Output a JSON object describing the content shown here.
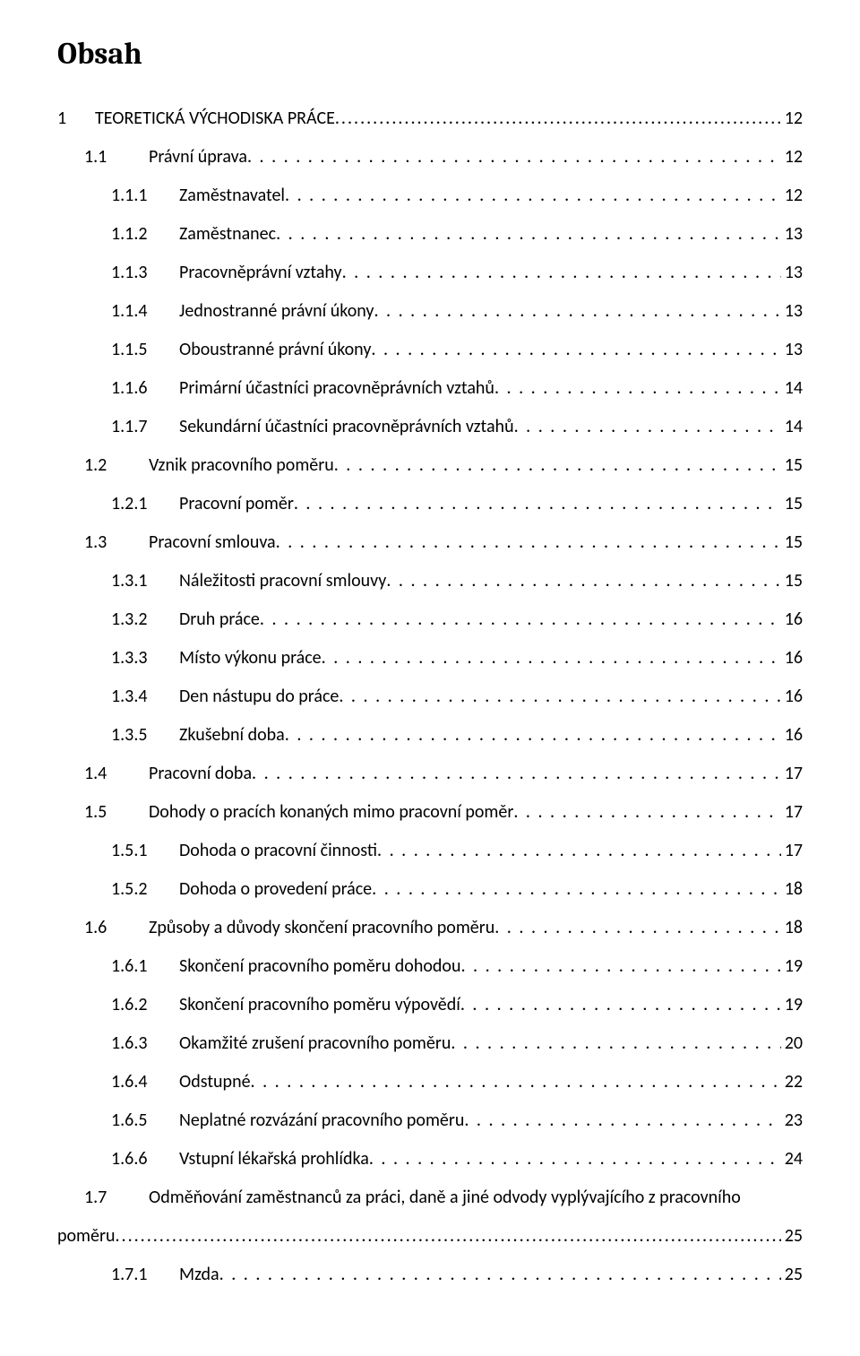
{
  "heading": "Obsah",
  "toc": [
    {
      "level": 1,
      "num": "1",
      "title": "TEORETICKÁ VÝCHODISKA PRÁCE",
      "page": "12",
      "dots": "dense"
    },
    {
      "level": 2,
      "num": "1.1",
      "title": "Právní úprava",
      "page": "12",
      "dots": "space"
    },
    {
      "level": 3,
      "num": "1.1.1",
      "title": "Zaměstnavatel",
      "page": "12",
      "dots": "space"
    },
    {
      "level": 3,
      "num": "1.1.2",
      "title": "Zaměstnanec",
      "page": "13",
      "dots": "space"
    },
    {
      "level": 3,
      "num": "1.1.3",
      "title": "Pracovněprávní vztahy",
      "page": "13",
      "dots": "space"
    },
    {
      "level": 3,
      "num": "1.1.4",
      "title": "Jednostranné právní úkony",
      "page": "13",
      "dots": "space"
    },
    {
      "level": 3,
      "num": "1.1.5",
      "title": "Oboustranné právní úkony",
      "page": "13",
      "dots": "space"
    },
    {
      "level": 3,
      "num": "1.1.6",
      "title": "Primární účastníci pracovněprávních vztahů",
      "page": "14",
      "dots": "space"
    },
    {
      "level": 3,
      "num": "1.1.7",
      "title": "Sekundární účastníci pracovněprávních vztahů",
      "page": "14",
      "dots": "space"
    },
    {
      "level": 2,
      "num": "1.2",
      "title": "Vznik pracovního poměru",
      "page": "15",
      "dots": "space"
    },
    {
      "level": 3,
      "num": "1.2.1",
      "title": "Pracovní poměr",
      "page": "15",
      "dots": "space"
    },
    {
      "level": 2,
      "num": "1.3",
      "title": "Pracovní smlouva",
      "page": "15",
      "dots": "space"
    },
    {
      "level": 3,
      "num": "1.3.1",
      "title": "Náležitosti pracovní smlouvy",
      "page": "15",
      "dots": "space"
    },
    {
      "level": 3,
      "num": "1.3.2",
      "title": "Druh práce",
      "page": "16",
      "dots": "space"
    },
    {
      "level": 3,
      "num": "1.3.3",
      "title": "Místo výkonu práce",
      "page": "16",
      "dots": "space"
    },
    {
      "level": 3,
      "num": "1.3.4",
      "title": "Den nástupu do práce",
      "page": "16",
      "dots": "space"
    },
    {
      "level": 3,
      "num": "1.3.5",
      "title": "Zkušební doba",
      "page": "16",
      "dots": "space"
    },
    {
      "level": 2,
      "num": "1.4",
      "title": "Pracovní doba",
      "page": "17",
      "dots": "space"
    },
    {
      "level": 2,
      "num": "1.5",
      "title": "Dohody o pracích konaných mimo pracovní poměr",
      "page": "17",
      "dots": "space"
    },
    {
      "level": 3,
      "num": "1.5.1",
      "title": "Dohoda o pracovní činnosti",
      "page": "17",
      "dots": "space"
    },
    {
      "level": 3,
      "num": "1.5.2",
      "title": "Dohoda o provedení práce",
      "page": "18",
      "dots": "space"
    },
    {
      "level": 2,
      "num": "1.6",
      "title": "Způsoby a důvody skončení pracovního poměru",
      "page": "18",
      "dots": "space"
    },
    {
      "level": 3,
      "num": "1.6.1",
      "title": "Skončení pracovního poměru dohodou",
      "page": "19",
      "dots": "space"
    },
    {
      "level": 3,
      "num": "1.6.2",
      "title": "Skončení pracovního poměru výpovědí",
      "page": "19",
      "dots": "space"
    },
    {
      "level": 3,
      "num": "1.6.3",
      "title": "Okamžité zrušení pracovního poměru",
      "page": "20",
      "dots": "space"
    },
    {
      "level": 3,
      "num": "1.6.4",
      "title": "Odstupné",
      "page": "22",
      "dots": "space"
    },
    {
      "level": 3,
      "num": "1.6.5",
      "title": "Neplatné rozvázání pracovního poměru",
      "page": "23",
      "dots": "space"
    },
    {
      "level": 3,
      "num": "1.6.6",
      "title": "Vstupní lékařská prohlídka",
      "page": "24",
      "dots": "space"
    },
    {
      "level": "wrap",
      "num": "1.7",
      "title": "Odměňování zaměstnanců za práci, daně a jiné odvody vyplývajícího z pracovního poměru",
      "page": "25",
      "dots": "dense"
    },
    {
      "level": 3,
      "num": "1.7.1",
      "title": "Mzda",
      "page": "25",
      "dots": "space"
    }
  ]
}
